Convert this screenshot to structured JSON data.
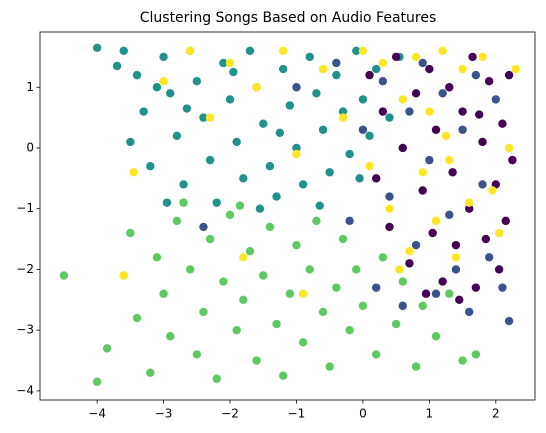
{
  "chart_data": {
    "type": "scatter",
    "title": "Clustering Songs Based on Audio Features",
    "xlim": [
      -4.86,
      2.59
    ],
    "ylim": [
      -4.15,
      1.91
    ],
    "xticks": [
      {
        "value": -4,
        "label": "−4"
      },
      {
        "value": -3,
        "label": "−3"
      },
      {
        "value": -2,
        "label": "−2"
      },
      {
        "value": -1,
        "label": "−1"
      },
      0,
      1,
      2
    ],
    "yticks": [
      {
        "value": -4,
        "label": "−4"
      },
      {
        "value": -3,
        "label": "−3"
      },
      {
        "value": -2,
        "label": "−2"
      },
      {
        "value": -1,
        "label": "−1"
      },
      0,
      1
    ],
    "series": [
      {
        "color": "#21918c",
        "x": [
          -4.0,
          -3.6,
          -3.4,
          -3.3,
          -3.2,
          -3.0,
          -2.9,
          -2.8,
          -2.7,
          -2.6,
          -2.5,
          -2.4,
          -2.3,
          -2.2,
          -2.1,
          -2.0,
          -1.9,
          -1.8,
          -1.7,
          -1.6,
          -1.5,
          -1.4,
          -1.3,
          -1.2,
          -1.1,
          -1.0,
          -0.9,
          -0.8,
          -0.7,
          -0.6,
          -0.5,
          -0.4,
          -0.3,
          -0.2,
          -0.1,
          0.0,
          0.1,
          0.2,
          0.4,
          -3.5,
          -2.95,
          -1.55,
          -2.65,
          -1.95,
          -1.25,
          -0.65,
          -3.1,
          -0.05,
          0.55,
          -3.7
        ],
        "values": [
          1.65,
          1.6,
          1.2,
          0.6,
          -0.3,
          1.5,
          0.9,
          0.2,
          -0.6,
          1.6,
          1.1,
          0.5,
          -0.2,
          -0.9,
          1.4,
          0.8,
          0.1,
          -0.5,
          1.6,
          1.0,
          0.4,
          -0.3,
          -0.8,
          1.3,
          0.7,
          0.0,
          -0.6,
          1.5,
          0.9,
          0.3,
          -0.4,
          1.2,
          0.6,
          -0.1,
          1.6,
          0.8,
          0.2,
          1.3,
          0.5,
          0.1,
          -0.9,
          -1.0,
          0.65,
          1.25,
          0.25,
          -0.95,
          1.0,
          -0.5,
          1.5,
          1.35
        ]
      },
      {
        "color": "#5ec962",
        "x": [
          -4.5,
          -4.0,
          -3.85,
          -3.6,
          -3.5,
          -3.4,
          -3.2,
          -3.1,
          -3.0,
          -2.9,
          -2.8,
          -2.6,
          -2.5,
          -2.4,
          -2.3,
          -2.2,
          -2.1,
          -2.0,
          -1.9,
          -1.8,
          -1.7,
          -1.6,
          -1.5,
          -1.4,
          -1.3,
          -1.2,
          -1.1,
          -1.0,
          -0.9,
          -0.8,
          -0.7,
          -0.6,
          -0.5,
          -0.4,
          -0.3,
          -0.2,
          -0.1,
          0.0,
          0.2,
          0.3,
          0.5,
          0.6,
          0.8,
          0.9,
          1.1,
          1.3,
          1.5,
          1.7,
          -2.7,
          -1.85
        ],
        "values": [
          -2.1,
          -3.85,
          -3.3,
          -2.1,
          -1.4,
          -2.8,
          -3.7,
          -1.8,
          -2.4,
          -3.1,
          -1.2,
          -2.0,
          -3.4,
          -2.7,
          -1.5,
          -3.8,
          -2.2,
          -1.1,
          -3.0,
          -2.5,
          -1.7,
          -3.5,
          -2.1,
          -1.3,
          -2.9,
          -3.75,
          -2.4,
          -1.6,
          -3.2,
          -2.0,
          -1.2,
          -2.7,
          -3.6,
          -2.3,
          -1.5,
          -3.0,
          -2.0,
          -2.6,
          -3.4,
          -1.8,
          -2.9,
          -2.2,
          -3.6,
          -2.6,
          -3.1,
          -2.4,
          -3.5,
          -3.4,
          -0.9,
          -0.95
        ]
      },
      {
        "color": "#3b528b",
        "x": [
          -0.4,
          -0.2,
          0.0,
          0.2,
          0.3,
          0.4,
          0.6,
          0.7,
          0.8,
          0.9,
          1.0,
          1.1,
          1.2,
          1.3,
          1.4,
          1.5,
          1.6,
          1.7,
          1.8,
          1.9,
          2.0,
          2.1,
          2.2,
          -1.0,
          -2.4
        ],
        "values": [
          1.4,
          -1.2,
          0.3,
          -2.3,
          1.1,
          -0.8,
          -2.6,
          0.6,
          -1.6,
          1.4,
          -0.2,
          -2.4,
          0.9,
          -1.1,
          -2.0,
          0.3,
          -2.7,
          1.2,
          -0.6,
          -1.8,
          0.8,
          -2.3,
          -2.85,
          1.0,
          -1.3
        ]
      },
      {
        "color": "#440154",
        "x": [
          0.1,
          0.2,
          0.3,
          0.4,
          0.5,
          0.6,
          0.7,
          0.8,
          0.9,
          1.0,
          1.05,
          1.1,
          1.2,
          1.3,
          1.35,
          1.4,
          1.5,
          1.6,
          1.65,
          1.7,
          1.8,
          1.85,
          1.9,
          2.0,
          2.05,
          2.1,
          2.15,
          2.2,
          2.25,
          1.45,
          0.95,
          1.75
        ],
        "values": [
          1.2,
          -0.5,
          0.6,
          -1.3,
          1.5,
          0.0,
          -1.9,
          0.9,
          -0.7,
          1.3,
          -1.4,
          0.3,
          -2.2,
          1.0,
          -0.4,
          -1.6,
          0.6,
          -1.0,
          1.5,
          -2.3,
          0.1,
          -1.5,
          1.1,
          -0.6,
          -2.0,
          0.4,
          -1.2,
          1.2,
          -0.2,
          -2.5,
          -2.4,
          0.55
        ]
      },
      {
        "color": "#fde725",
        "x": [
          -3.6,
          -3.45,
          -3.0,
          -2.6,
          -2.3,
          -2.0,
          -1.6,
          -1.8,
          -1.2,
          -0.9,
          -0.6,
          -0.3,
          0.0,
          0.1,
          0.3,
          0.4,
          0.6,
          0.7,
          0.8,
          0.9,
          1.0,
          1.1,
          1.2,
          1.3,
          1.4,
          1.5,
          1.6,
          1.8,
          1.95,
          2.05,
          2.3,
          1.25,
          -1.0,
          2.2,
          0.55
        ],
        "values": [
          -2.1,
          -0.4,
          1.1,
          1.6,
          0.5,
          1.4,
          1.0,
          -1.8,
          1.6,
          -2.4,
          1.3,
          0.5,
          1.6,
          -0.3,
          1.4,
          -1.0,
          0.8,
          -1.7,
          1.5,
          -0.4,
          0.6,
          -1.2,
          1.6,
          -0.2,
          -1.8,
          1.3,
          -0.9,
          1.5,
          -0.7,
          -1.4,
          1.3,
          0.2,
          -0.1,
          0.0,
          -2.0
        ]
      }
    ]
  }
}
